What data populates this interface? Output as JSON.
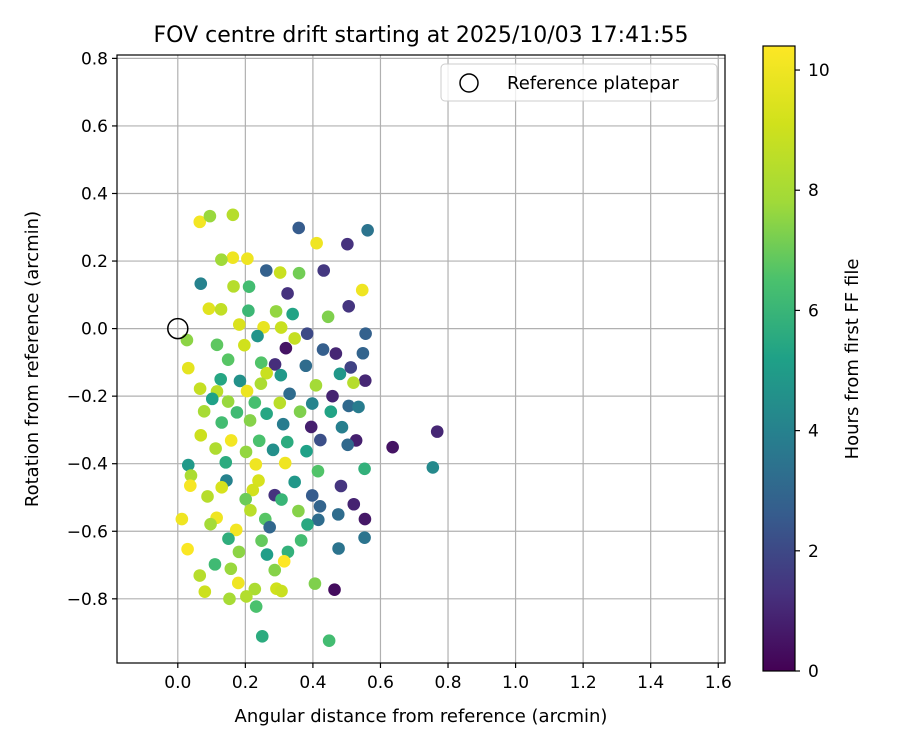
{
  "chart_data": {
    "type": "scatter",
    "title": "FOV centre drift starting at 2025/10/03 17:41:55",
    "xlabel": "Angular distance from reference (arcmin)",
    "ylabel": "Rotation from reference (arcmin)",
    "xlim": [
      -0.18,
      1.62
    ],
    "ylim": [
      -0.99,
      0.81
    ],
    "xticks": [
      0.0,
      0.2,
      0.4,
      0.6,
      0.8,
      1.0,
      1.2,
      1.4,
      1.6
    ],
    "xtick_labels": [
      "0.0",
      "0.2",
      "0.4",
      "0.6",
      "0.8",
      "1.0",
      "1.2",
      "1.4",
      "1.6"
    ],
    "yticks": [
      -0.8,
      -0.6,
      -0.4,
      -0.2,
      0.0,
      0.2,
      0.4,
      0.6,
      0.8
    ],
    "ytick_labels": [
      "−0.8",
      "−0.6",
      "−0.4",
      "−0.2",
      "0.0",
      "0.2",
      "0.4",
      "0.6",
      "0.8"
    ],
    "grid": true,
    "legend": {
      "position": "top-right",
      "entries": [
        "Reference platepar"
      ]
    },
    "reference_point": {
      "x": 0.0,
      "y": 0.0,
      "label": "Reference platepar"
    },
    "colorbar": {
      "label": "Hours from first FF file",
      "colormap": "viridis",
      "range": [
        0,
        10.4
      ],
      "ticks": [
        0,
        2,
        4,
        6,
        8,
        10
      ],
      "tick_labels": [
        "0",
        "2",
        "4",
        "6",
        "8",
        "10"
      ]
    },
    "points": [
      [
        0.163,
        0.337,
        8.4
      ],
      [
        0.065,
        0.316,
        10.1
      ],
      [
        0.095,
        0.333,
        7.7
      ],
      [
        0.358,
        0.298,
        2.6
      ],
      [
        0.562,
        0.291,
        3.5
      ],
      [
        0.502,
        0.25,
        1.3
      ],
      [
        0.411,
        0.253,
        10.0
      ],
      [
        0.163,
        0.21,
        10.0
      ],
      [
        0.206,
        0.207,
        10.0
      ],
      [
        0.129,
        0.204,
        7.8
      ],
      [
        0.262,
        0.172,
        2.8
      ],
      [
        0.303,
        0.166,
        8.9
      ],
      [
        0.359,
        0.164,
        7.1
      ],
      [
        0.432,
        0.172,
        1.5
      ],
      [
        0.068,
        0.133,
        4.0
      ],
      [
        0.546,
        0.114,
        10.0
      ],
      [
        0.165,
        0.125,
        8.4
      ],
      [
        0.211,
        0.124,
        6.3
      ],
      [
        0.325,
        0.104,
        1.3
      ],
      [
        0.506,
        0.066,
        1.4
      ],
      [
        0.092,
        0.059,
        9.6
      ],
      [
        0.128,
        0.057,
        8.7
      ],
      [
        0.209,
        0.053,
        6.1
      ],
      [
        0.291,
        0.051,
        7.6
      ],
      [
        0.34,
        0.043,
        5.3
      ],
      [
        0.445,
        0.035,
        7.3
      ],
      [
        0.182,
        0.012,
        9.4
      ],
      [
        0.254,
        0.004,
        9.8
      ],
      [
        0.306,
        0.003,
        8.9
      ],
      [
        0.383,
        -0.015,
        2.0
      ],
      [
        0.556,
        -0.015,
        2.8
      ],
      [
        0.027,
        -0.034,
        7.5
      ],
      [
        0.236,
        -0.022,
        4.7
      ],
      [
        0.346,
        -0.029,
        8.8
      ],
      [
        0.116,
        -0.048,
        6.8
      ],
      [
        0.197,
        -0.049,
        9.1
      ],
      [
        0.32,
        -0.058,
        0.5
      ],
      [
        0.43,
        -0.062,
        2.7
      ],
      [
        0.548,
        -0.073,
        2.9
      ],
      [
        0.468,
        -0.074,
        1.0
      ],
      [
        0.149,
        -0.092,
        6.7
      ],
      [
        0.247,
        -0.101,
        6.6
      ],
      [
        0.288,
        -0.106,
        1.2
      ],
      [
        0.379,
        -0.11,
        3.2
      ],
      [
        0.512,
        -0.115,
        1.8
      ],
      [
        0.031,
        -0.117,
        9.7
      ],
      [
        0.263,
        -0.132,
        8.9
      ],
      [
        0.305,
        -0.138,
        4.9
      ],
      [
        0.48,
        -0.134,
        4.8
      ],
      [
        0.555,
        -0.154,
        1.0
      ],
      [
        0.127,
        -0.15,
        5.4
      ],
      [
        0.184,
        -0.155,
        4.6
      ],
      [
        0.246,
        -0.163,
        8.1
      ],
      [
        0.409,
        -0.168,
        7.9
      ],
      [
        0.52,
        -0.16,
        8.4
      ],
      [
        0.066,
        -0.178,
        8.8
      ],
      [
        0.116,
        -0.186,
        8.5
      ],
      [
        0.205,
        -0.185,
        9.9
      ],
      [
        0.331,
        -0.193,
        3.2
      ],
      [
        0.458,
        -0.2,
        0.9
      ],
      [
        0.102,
        -0.208,
        5.2
      ],
      [
        0.149,
        -0.216,
        7.7
      ],
      [
        0.228,
        -0.219,
        6.4
      ],
      [
        0.302,
        -0.22,
        8.5
      ],
      [
        0.398,
        -0.222,
        4.1
      ],
      [
        0.506,
        -0.229,
        3.1
      ],
      [
        0.078,
        -0.245,
        8.0
      ],
      [
        0.175,
        -0.248,
        6.2
      ],
      [
        0.263,
        -0.252,
        5.4
      ],
      [
        0.362,
        -0.246,
        7.3
      ],
      [
        0.453,
        -0.246,
        5.3
      ],
      [
        0.535,
        -0.232,
        3.8
      ],
      [
        0.13,
        -0.278,
        6.3
      ],
      [
        0.214,
        -0.272,
        7.4
      ],
      [
        0.312,
        -0.283,
        3.8
      ],
      [
        0.395,
        -0.291,
        0.8
      ],
      [
        0.486,
        -0.292,
        3.9
      ],
      [
        0.068,
        -0.316,
        9.0
      ],
      [
        0.158,
        -0.331,
        10.1
      ],
      [
        0.241,
        -0.332,
        6.5
      ],
      [
        0.324,
        -0.336,
        5.6
      ],
      [
        0.422,
        -0.33,
        2.2
      ],
      [
        0.528,
        -0.331,
        0.8
      ],
      [
        0.112,
        -0.355,
        8.2
      ],
      [
        0.202,
        -0.365,
        7.6
      ],
      [
        0.282,
        -0.359,
        4.5
      ],
      [
        0.381,
        -0.363,
        5.2
      ],
      [
        0.503,
        -0.344,
        3.1
      ],
      [
        0.031,
        -0.404,
        4.9
      ],
      [
        0.142,
        -0.396,
        5.6
      ],
      [
        0.231,
        -0.402,
        10.0
      ],
      [
        0.318,
        -0.398,
        10.0
      ],
      [
        0.415,
        -0.422,
        6.6
      ],
      [
        0.553,
        -0.415,
        5.8
      ],
      [
        0.039,
        -0.435,
        8.1
      ],
      [
        0.144,
        -0.45,
        4.0
      ],
      [
        0.239,
        -0.45,
        9.3
      ],
      [
        0.346,
        -0.454,
        4.8
      ],
      [
        0.483,
        -0.466,
        1.4
      ],
      [
        0.037,
        -0.465,
        10.2
      ],
      [
        0.13,
        -0.47,
        9.3
      ],
      [
        0.222,
        -0.478,
        9.2
      ],
      [
        0.287,
        -0.493,
        1.3
      ],
      [
        0.398,
        -0.494,
        2.6
      ],
      [
        0.088,
        -0.497,
        8.4
      ],
      [
        0.201,
        -0.505,
        7.0
      ],
      [
        0.307,
        -0.506,
        6.0
      ],
      [
        0.421,
        -0.526,
        2.9
      ],
      [
        0.521,
        -0.52,
        0.9
      ],
      [
        0.215,
        -0.538,
        8.5
      ],
      [
        0.357,
        -0.54,
        7.4
      ],
      [
        0.475,
        -0.55,
        3.2
      ],
      [
        0.115,
        -0.56,
        10.0
      ],
      [
        0.259,
        -0.564,
        6.7
      ],
      [
        0.416,
        -0.566,
        3.2
      ],
      [
        0.554,
        -0.564,
        0.6
      ],
      [
        0.012,
        -0.564,
        10.0
      ],
      [
        0.097,
        -0.579,
        7.9
      ],
      [
        0.173,
        -0.596,
        10.1
      ],
      [
        0.272,
        -0.588,
        3.0
      ],
      [
        0.384,
        -0.58,
        5.5
      ],
      [
        0.15,
        -0.622,
        5.7
      ],
      [
        0.248,
        -0.628,
        6.9
      ],
      [
        0.365,
        -0.627,
        6.3
      ],
      [
        0.553,
        -0.619,
        3.5
      ],
      [
        0.029,
        -0.653,
        10.3
      ],
      [
        0.181,
        -0.661,
        7.5
      ],
      [
        0.264,
        -0.669,
        5.1
      ],
      [
        0.326,
        -0.661,
        5.8
      ],
      [
        0.476,
        -0.651,
        3.5
      ],
      [
        0.11,
        -0.698,
        6.2
      ],
      [
        0.157,
        -0.711,
        7.7
      ],
      [
        0.287,
        -0.715,
        7.4
      ],
      [
        0.315,
        -0.689,
        10.4
      ],
      [
        0.065,
        -0.731,
        8.4
      ],
      [
        0.179,
        -0.753,
        10.0
      ],
      [
        0.228,
        -0.771,
        8.1
      ],
      [
        0.292,
        -0.77,
        9.1
      ],
      [
        0.406,
        -0.755,
        7.3
      ],
      [
        0.464,
        -0.773,
        0.3
      ],
      [
        0.08,
        -0.779,
        9.0
      ],
      [
        0.153,
        -0.8,
        8.0
      ],
      [
        0.203,
        -0.793,
        8.3
      ],
      [
        0.307,
        -0.777,
        8.9
      ],
      [
        0.232,
        -0.823,
        6.5
      ],
      [
        0.25,
        -0.911,
        5.6
      ],
      [
        0.448,
        -0.924,
        6.3
      ],
      [
        0.636,
        -0.351,
        0.5
      ],
      [
        0.768,
        -0.305,
        1.0
      ],
      [
        0.755,
        -0.411,
        4.3
      ]
    ]
  }
}
